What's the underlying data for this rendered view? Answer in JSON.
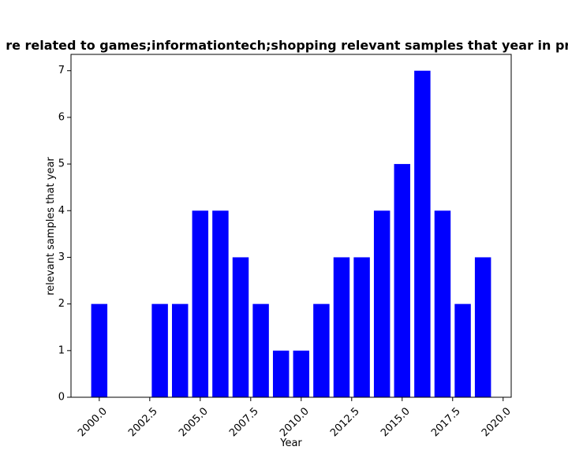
{
  "chart_data": {
    "type": "bar",
    "title": "re related to games;informationtech;shopping relevant samples that year in pri",
    "xlabel": "Year",
    "ylabel": "relevant samples that year",
    "x": [
      2000,
      2003,
      2004,
      2005,
      2006,
      2007,
      2008,
      2009,
      2010,
      2011,
      2012,
      2013,
      2014,
      2015,
      2016,
      2017,
      2018,
      2019
    ],
    "values": [
      2,
      2,
      2,
      4,
      4,
      3,
      2,
      1,
      1,
      2,
      3,
      3,
      4,
      5,
      7,
      4,
      2,
      3
    ],
    "xlim": [
      1998.6,
      2020.4
    ],
    "ylim": [
      0,
      7.35
    ],
    "xticks": [
      2000.0,
      2002.5,
      2005.0,
      2007.5,
      2010.0,
      2012.5,
      2015.0,
      2017.5,
      2020.0
    ],
    "xtick_labels": [
      "2000.0",
      "2002.5",
      "2005.0",
      "2007.5",
      "2010.0",
      "2012.5",
      "2015.0",
      "2017.5",
      "2020.0"
    ],
    "yticks": [
      0,
      1,
      2,
      3,
      4,
      5,
      6,
      7
    ],
    "ytick_labels": [
      "0",
      "1",
      "2",
      "3",
      "4",
      "5",
      "6",
      "7"
    ],
    "bar_color": "#0000ff",
    "grid": false,
    "legend": "none"
  }
}
